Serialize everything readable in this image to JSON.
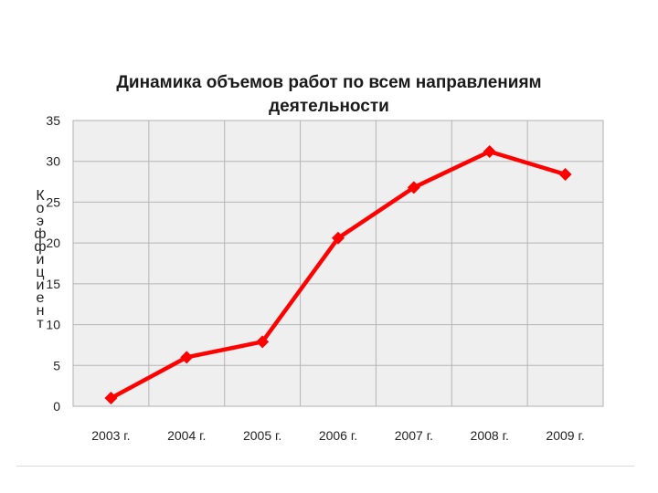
{
  "chart_data": {
    "type": "line",
    "title": "Динамика объемов работ по всем направлениям\nдеятельности",
    "ylabel": "Коэффициент",
    "categories": [
      "2003 г.",
      "2004 г.",
      "2005 г.",
      "2006 г.",
      "2007 г.",
      "2008 г.",
      "2009 г."
    ],
    "series": [
      {
        "values": [
          1,
          6,
          7.9,
          20.6,
          26.8,
          31.2,
          28.4
        ]
      }
    ],
    "ylim": [
      0,
      35
    ],
    "yticks": [
      0,
      5,
      10,
      15,
      20,
      25,
      30,
      35
    ],
    "grid": true,
    "legend": "none",
    "colors": {
      "line": "#ff0000",
      "plot_background": "#efefef",
      "grid": "#b5b5b5"
    }
  }
}
